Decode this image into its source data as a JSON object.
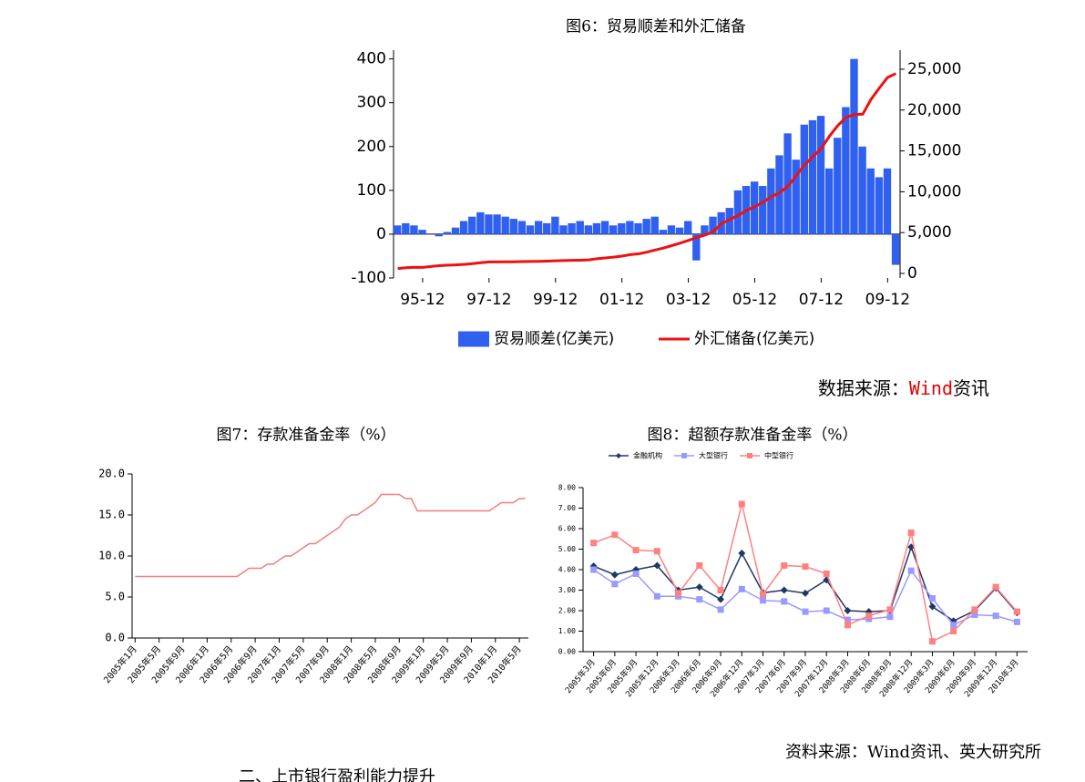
{
  "chart_data": [
    {
      "type": "combo",
      "title": "图6：贸易顺差和外汇储备",
      "categories": [
        null,
        null,
        null,
        "95-12",
        null,
        null,
        null,
        null,
        null,
        null,
        null,
        "97-12",
        null,
        null,
        null,
        null,
        null,
        null,
        null,
        "99-12",
        null,
        null,
        null,
        null,
        null,
        null,
        null,
        "01-12",
        null,
        null,
        null,
        null,
        null,
        null,
        null,
        "03-12",
        null,
        null,
        null,
        null,
        null,
        null,
        null,
        "05-12",
        null,
        null,
        null,
        null,
        null,
        null,
        null,
        "07-12",
        null,
        null,
        null,
        null,
        null,
        null,
        null,
        "09-12",
        null
      ],
      "series": [
        {
          "name": "贸易顺差(亿美元)",
          "type": "bar",
          "color": "#3060f0",
          "values": [
            20,
            25,
            20,
            10,
            0,
            -5,
            5,
            15,
            30,
            40,
            50,
            45,
            45,
            40,
            35,
            30,
            20,
            30,
            25,
            40,
            20,
            25,
            30,
            20,
            25,
            30,
            20,
            25,
            30,
            25,
            35,
            40,
            10,
            20,
            15,
            30,
            -60,
            20,
            40,
            50,
            60,
            100,
            110,
            120,
            110,
            150,
            180,
            230,
            170,
            250,
            260,
            270,
            150,
            220,
            290,
            400,
            200,
            150,
            130,
            150,
            -70
          ]
        },
        {
          "name": "外汇储备(亿美元)",
          "type": "line",
          "axis": "y2",
          "color": "#ee1111",
          "values": [
            600,
            700,
            750,
            740,
            850,
            950,
            1000,
            1050,
            1100,
            1200,
            1300,
            1400,
            1400,
            1410,
            1420,
            1450,
            1460,
            1470,
            1500,
            1547,
            1570,
            1600,
            1620,
            1656,
            1800,
            1900,
            2000,
            2122,
            2300,
            2400,
            2600,
            2864,
            3100,
            3400,
            3700,
            4033,
            4400,
            4700,
            5100,
            6099,
            6600,
            7100,
            7700,
            8189,
            8700,
            9400,
            9900,
            10663,
            12000,
            13300,
            14300,
            15282,
            16800,
            18100,
            19100,
            19460,
            19500,
            21300,
            22700,
            23992,
            24471
          ]
        }
      ],
      "ylim": [
        -100,
        420
      ],
      "yticks": [
        -100,
        0,
        100,
        200,
        300,
        400
      ],
      "y2lim": [
        -560,
        27340
      ],
      "y2ticks": [
        0,
        {
          "value": 5000,
          "label": "5,000"
        },
        {
          "value": 10000,
          "label": "10,000"
        },
        {
          "value": 15000,
          "label": "15,000"
        },
        {
          "value": 20000,
          "label": "20,000"
        },
        {
          "value": 25000,
          "label": "25,000"
        }
      ],
      "grid": false,
      "legend": "bottom",
      "source": {
        "prefix": "数据来源：",
        "highlight": "Wind",
        "rest": "资讯"
      }
    },
    {
      "type": "line",
      "title": "图7：存款准备金率（%）",
      "categories": [
        "2005年1月",
        null,
        null,
        null,
        "2005年5月",
        null,
        null,
        null,
        "2005年9月",
        null,
        null,
        null,
        "2006年1月",
        null,
        null,
        null,
        "2006年5月",
        null,
        null,
        null,
        "2006年9月",
        null,
        null,
        null,
        "2007年1月",
        null,
        null,
        null,
        "2007年5月",
        null,
        null,
        null,
        "2007年9月",
        null,
        null,
        null,
        "2008年1月",
        null,
        null,
        null,
        "2008年5月",
        null,
        null,
        null,
        "2008年9月",
        null,
        null,
        null,
        "2009年1月",
        null,
        null,
        null,
        "2009年5月",
        null,
        null,
        null,
        "2009年9月",
        null,
        null,
        null,
        "2010年1月",
        null,
        null,
        null,
        "2010年5月",
        null
      ],
      "series": [
        {
          "color": "#f07f7f",
          "values": [
            7.5,
            7.5,
            7.5,
            7.5,
            7.5,
            7.5,
            7.5,
            7.5,
            7.5,
            7.5,
            7.5,
            7.5,
            7.5,
            7.5,
            7.5,
            7.5,
            7.5,
            7.5,
            8.0,
            8.5,
            8.5,
            8.5,
            9.0,
            9.0,
            9.5,
            10,
            10,
            10.5,
            11,
            11.5,
            11.5,
            12,
            12.5,
            13,
            13.5,
            14.5,
            15,
            15,
            15.5,
            16,
            16.5,
            17.5,
            17.5,
            17.5,
            17.5,
            17,
            17,
            15.5,
            15.5,
            15.5,
            15.5,
            15.5,
            15.5,
            15.5,
            15.5,
            15.5,
            15.5,
            15.5,
            15.5,
            15.5,
            16,
            16.5,
            16.5,
            16.5,
            17,
            17
          ]
        }
      ],
      "ylim": [
        0,
        20
      ],
      "yticks": [
        {
          "value": 0,
          "label": "0.0"
        },
        {
          "value": 5,
          "label": "5.0"
        },
        {
          "value": 10,
          "label": "10.0"
        },
        {
          "value": 15,
          "label": "15.0"
        },
        {
          "value": 20,
          "label": "20.0"
        }
      ],
      "grid": false
    },
    {
      "type": "line",
      "title": "图8：超额存款准备金率（%）",
      "categories": [
        "2005年3月",
        "2005年6月",
        "2005年9月",
        "2005年12月",
        "2006年3月",
        "2006年6月",
        "2006年9月",
        "2006年12月",
        "2007年3月",
        "2007年6月",
        "2007年9月",
        "2007年12月",
        "2008年3月",
        "2008年6月",
        "2008年9月",
        "2008年12月",
        "2009年3月",
        "2009年6月",
        "2009年9月",
        "2009年12月",
        "2010年3月"
      ],
      "series": [
        {
          "name": "金融机构",
          "color": "#1f3864",
          "marker": "diamond",
          "values": [
            4.17,
            3.75,
            4.0,
            4.2,
            3.0,
            3.15,
            2.55,
            4.8,
            2.87,
            3.0,
            2.85,
            3.5,
            2.0,
            1.95,
            2.0,
            5.1,
            2.2,
            1.5,
            2.0,
            3.1,
            1.9
          ]
        },
        {
          "name": "大型银行",
          "color": "#9999ff",
          "marker": "square",
          "values": [
            4.0,
            3.3,
            3.8,
            2.7,
            2.7,
            2.55,
            2.05,
            3.05,
            2.5,
            2.45,
            1.95,
            2.0,
            1.55,
            1.6,
            1.7,
            3.95,
            2.6,
            1.3,
            1.8,
            1.75,
            1.45
          ]
        },
        {
          "name": "中型银行",
          "color": "#ff8080",
          "marker": "square",
          "values": [
            5.3,
            5.7,
            4.95,
            4.9,
            2.85,
            4.2,
            3.0,
            7.2,
            2.8,
            4.2,
            4.15,
            3.8,
            1.3,
            1.75,
            2.05,
            5.8,
            0.5,
            1.0,
            2.05,
            3.15,
            1.95
          ]
        }
      ],
      "ylim": [
        0,
        8
      ],
      "yticks": [
        {
          "value": 0,
          "label": "0.00"
        },
        {
          "value": 1,
          "label": "1.00"
        },
        {
          "value": 2,
          "label": "2.00"
        },
        {
          "value": 3,
          "label": "3.00"
        },
        {
          "value": 4,
          "label": "4.00"
        },
        {
          "value": 5,
          "label": "5.00"
        },
        {
          "value": 6,
          "label": "6.00"
        },
        {
          "value": 7,
          "label": "7.00"
        },
        {
          "value": 8,
          "label": "8.00"
        }
      ],
      "grid": false,
      "legend": "top",
      "source": "资料来源：Wind资讯、英大研究所"
    }
  ],
  "section_heading": "二、上市银行盈利能力提升"
}
